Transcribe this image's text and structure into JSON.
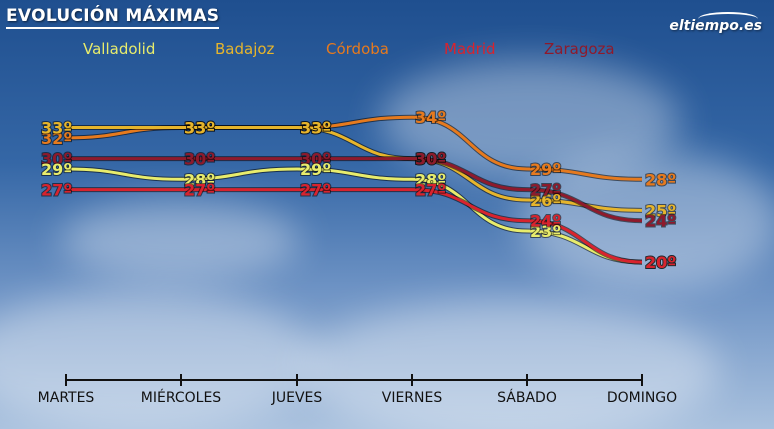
{
  "title": "EVOLUCIÓN MÁXIMAS",
  "logo": "eltiempo.es",
  "colors": {
    "Valladolid": "#e8ec6c",
    "Badajoz": "#e6b52c",
    "Córdoba": "#e67a1e",
    "Madrid": "#d8232e",
    "Zaragoza": "#8e1a2c"
  },
  "chart_data": {
    "type": "line",
    "title": "EVOLUCIÓN MÁXIMAS",
    "categories": [
      "MARTES",
      "MIÉRCOLES",
      "JUEVES",
      "VIERNES",
      "SÁBADO",
      "DOMINGO"
    ],
    "ylabel": "",
    "xlabel": "",
    "ylim": [
      20,
      34
    ],
    "legend": "top",
    "grid": false,
    "series": [
      {
        "name": "Valladolid",
        "values": [
          29,
          28,
          29,
          28,
          23,
          20
        ],
        "labels": [
          "29º",
          "28º",
          "29º",
          "28º",
          "23º",
          "20º"
        ]
      },
      {
        "name": "Badajoz",
        "values": [
          33,
          33,
          33,
          30,
          26,
          25
        ],
        "labels": [
          "33º",
          "33º",
          "33º",
          "30º",
          "26º",
          "25º"
        ]
      },
      {
        "name": "Córdoba",
        "values": [
          32,
          33,
          33,
          34,
          29,
          28
        ],
        "labels": [
          "32º",
          "33º",
          "33º",
          "34º",
          "29º",
          "28º"
        ]
      },
      {
        "name": "Madrid",
        "values": [
          27,
          27,
          27,
          27,
          24,
          20
        ],
        "labels": [
          "27º",
          "27º",
          "27º",
          "27º",
          "24º",
          "20º"
        ]
      },
      {
        "name": "Zaragoza",
        "values": [
          30,
          30,
          30,
          30,
          27,
          24
        ],
        "labels": [
          "30º",
          "30º",
          "30º",
          "30º",
          "27º",
          "24º"
        ]
      }
    ]
  }
}
